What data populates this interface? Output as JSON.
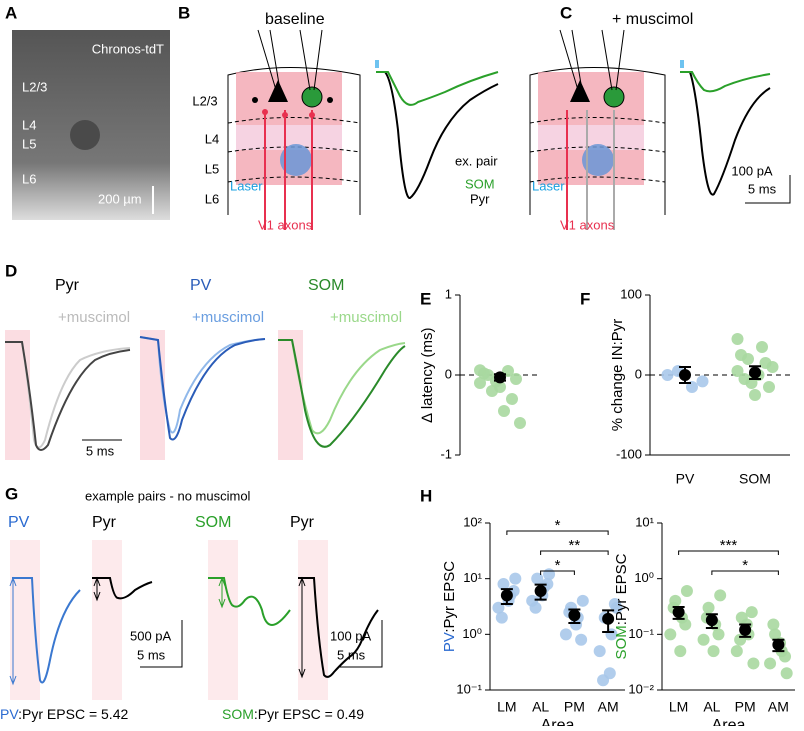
{
  "panels": {
    "A": {
      "letter": "A",
      "label": "Chronos-tdT",
      "layers": [
        "L2/3",
        "L4",
        "L5",
        "L6"
      ],
      "scale": "200 µm"
    },
    "B": {
      "letter": "B",
      "title": "baseline",
      "layers": [
        "L2/3",
        "L4",
        "L5",
        "L6"
      ],
      "laser": "Laser",
      "axons": "V1 axons",
      "pair": "ex. pair",
      "som": "SOM",
      "pyr": "Pyr"
    },
    "C": {
      "letter": "C",
      "title": "+ muscimol",
      "laser": "Laser",
      "axons": "V1 axons",
      "scale_y": "100 pA",
      "scale_x": "5 ms"
    },
    "D": {
      "letter": "D",
      "cells": [
        "Pyr",
        "PV",
        "SOM"
      ],
      "drug": "+muscimol",
      "scale_x": "5 ms"
    },
    "E": {
      "letter": "E"
    },
    "F": {
      "letter": "F"
    },
    "G": {
      "letter": "G",
      "title": "example pairs - no muscimol",
      "cells": [
        "PV",
        "Pyr",
        "SOM",
        "Pyr"
      ],
      "scale1_y": "500 pA",
      "scale1_x": "5 ms",
      "scale2_y": "100 pA",
      "scale2_x": "5 ms",
      "ratio1_prefix": "PV",
      "ratio1": ":Pyr EPSC = 5.42",
      "ratio2_prefix": "SOM",
      "ratio2": ":Pyr EPSC = 0.49"
    },
    "H": {
      "letter": "H"
    }
  },
  "chart_data": [
    {
      "type": "scatter",
      "ylabel": "∆ latency (ms)",
      "ylim": [
        -1,
        1
      ],
      "yticks": [
        -1,
        0,
        1
      ],
      "zero_line": true,
      "colors": [
        "#a8d8a0"
      ],
      "points": [
        [
          -0.1,
          0.05,
          -0.2,
          -0.6,
          -0.45,
          0.0,
          -0.05,
          -0.15,
          0.02,
          -0.3,
          -0.08,
          0.06
        ]
      ],
      "means": [
        -0.03
      ],
      "errors": [
        0.04
      ]
    },
    {
      "type": "scatter",
      "ylabel": "% change IN:Pyr",
      "ylim": [
        -100,
        100
      ],
      "yticks": [
        -100,
        0,
        100
      ],
      "zero_line": true,
      "categories": [
        "PV",
        "SOM"
      ],
      "colors": [
        "#a8c8ea",
        "#a8d8a0"
      ],
      "points": [
        [
          0,
          -15,
          5,
          -8
        ],
        [
          45,
          35,
          20,
          10,
          0,
          -5,
          -15,
          -25,
          25,
          15,
          -10,
          5
        ]
      ],
      "means": [
        0,
        3
      ],
      "errors": [
        10,
        8
      ]
    },
    {
      "type": "scatter",
      "log": true,
      "ylabel_prefix": "PV",
      "ylabel": ":Pyr EPSC",
      "xlabel": "Area",
      "ylim": [
        0.1,
        100
      ],
      "yticks": [
        {
          "value": 0.1,
          "label": "10⁻¹"
        },
        {
          "value": 1,
          "label": "10⁰"
        },
        {
          "value": 10,
          "label": "10¹"
        },
        {
          "value": 100,
          "label": "10²"
        }
      ],
      "categories": [
        "LM",
        "AL",
        "PM",
        "AM"
      ],
      "colors": [
        "#a8c8ea",
        "#a8c8ea",
        "#a8c8ea",
        "#a8c8ea"
      ],
      "points": [
        [
          3,
          5,
          8,
          10,
          4,
          2,
          6
        ],
        [
          4,
          7,
          10,
          12,
          5,
          3,
          8
        ],
        [
          1,
          2,
          3,
          4,
          1.5,
          2.5,
          0.8
        ],
        [
          0.5,
          1,
          2,
          3,
          0.2,
          0.15,
          3.5
        ]
      ],
      "means": [
        5,
        6,
        2.2,
        1.9
      ],
      "errors": [
        1.5,
        1.8,
        0.6,
        0.8
      ],
      "significance": [
        "*",
        "**",
        "*"
      ]
    },
    {
      "type": "scatter",
      "log": true,
      "ylabel_prefix": "SOM",
      "ylabel": ":Pyr EPSC",
      "xlabel": "Area",
      "ylim": [
        0.01,
        10
      ],
      "yticks": [
        {
          "value": 0.01,
          "label": "10⁻²"
        },
        {
          "value": 0.1,
          "label": "10⁻¹"
        },
        {
          "value": 1,
          "label": "10⁰"
        },
        {
          "value": 10,
          "label": "10¹"
        }
      ],
      "categories": [
        "LM",
        "AL",
        "PM",
        "AM"
      ],
      "colors": [
        "#a8d8a0",
        "#a8d8a0",
        "#a8d8a0",
        "#a8d8a0"
      ],
      "points": [
        [
          0.1,
          0.2,
          0.4,
          0.6,
          0.05,
          0.3,
          0.15
        ],
        [
          0.08,
          0.15,
          0.3,
          0.5,
          0.05,
          0.2,
          0.1
        ],
        [
          0.05,
          0.1,
          0.2,
          0.03,
          0.15,
          0.08,
          0.25
        ],
        [
          0.03,
          0.05,
          0.1,
          0.02,
          0.07,
          0.15,
          0.04
        ]
      ],
      "means": [
        0.25,
        0.18,
        0.12,
        0.065
      ],
      "errors": [
        0.06,
        0.05,
        0.03,
        0.015
      ],
      "significance": [
        "***",
        "*"
      ]
    }
  ]
}
